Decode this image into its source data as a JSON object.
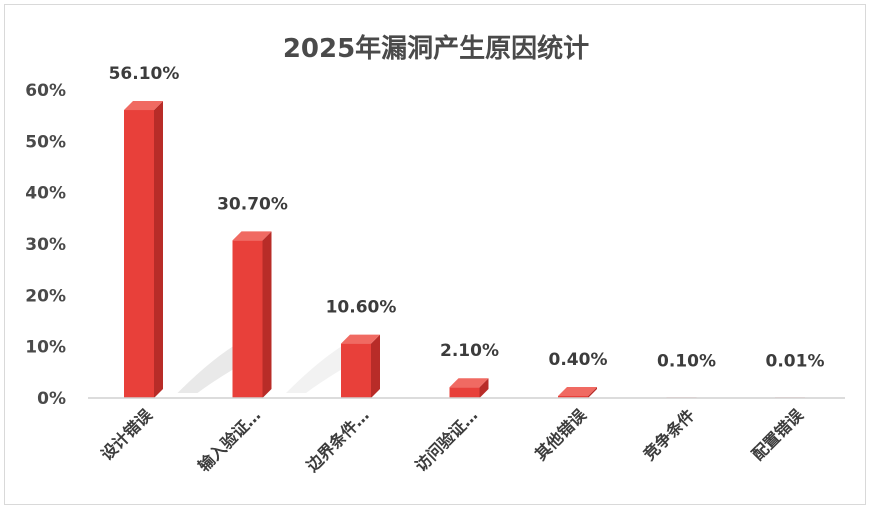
{
  "chart_data": {
    "type": "bar",
    "title": "2025年漏洞产生原因统计",
    "xlabel": "",
    "ylabel": "",
    "categories": [
      "设计错误",
      "输入验证…",
      "边界条件…",
      "访问验证…",
      "其他错误",
      "竞争条件",
      "配置错误"
    ],
    "values": [
      56.1,
      30.7,
      10.6,
      2.1,
      0.4,
      0.1,
      0.01
    ],
    "data_labels": [
      "56.10%",
      "30.70%",
      "10.60%",
      "2.10%",
      "0.40%",
      "0.10%",
      "0.01%"
    ],
    "yticks": [
      "0%",
      "10%",
      "20%",
      "30%",
      "40%",
      "50%",
      "60%"
    ],
    "ylim": [
      0,
      60
    ],
    "grid": false,
    "legend": "none",
    "bar_color": "#e8403a",
    "bar_side_color": "#b82c28",
    "bar_top_color": "#f06a62"
  }
}
